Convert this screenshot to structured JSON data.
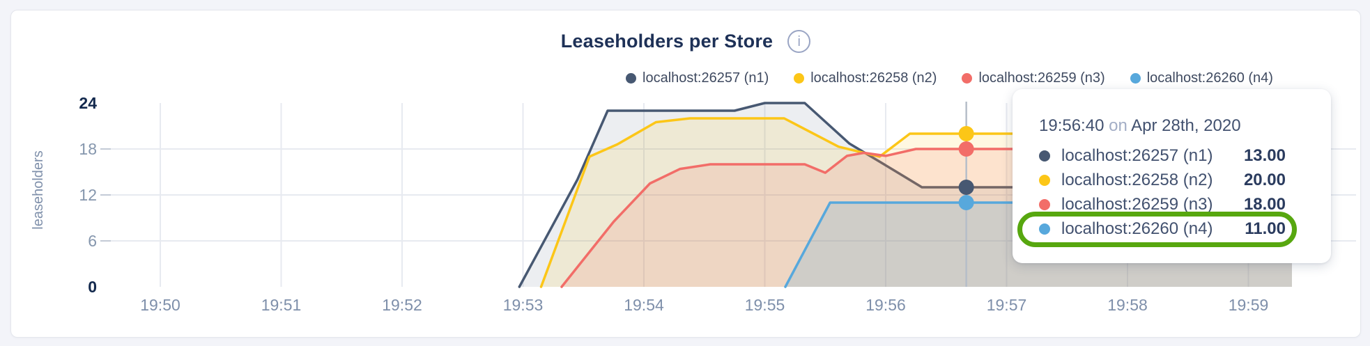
{
  "header": {
    "title": "Leaseholders per Store",
    "info_tooltip_glyph": "i"
  },
  "legend": {
    "items": [
      {
        "label": "localhost:26257 (n1)",
        "color": "#475872"
      },
      {
        "label": "localhost:26258 (n2)",
        "color": "#fcc617"
      },
      {
        "label": "localhost:26259 (n3)",
        "color": "#f26d68"
      },
      {
        "label": "localhost:26260 (n4)",
        "color": "#57a8dc"
      }
    ]
  },
  "chart_data": {
    "type": "area",
    "title": "Leaseholders per Store",
    "xlabel": "",
    "ylabel": "leaseholders",
    "ylim": [
      0,
      24
    ],
    "y_ticks": [
      0,
      6,
      12,
      18,
      24
    ],
    "y_ticks_bold": [
      0,
      24
    ],
    "y_gridlines": [
      6,
      12,
      18
    ],
    "x_ticks": [
      "19:50",
      "19:51",
      "19:52",
      "19:53",
      "19:54",
      "19:55",
      "19:56",
      "19:57",
      "19:58",
      "19:59"
    ],
    "x_axis_unit": "minutes after 19:50",
    "x_data_end": 9.36,
    "grid": true,
    "legend_position": "top",
    "hover": {
      "x_minutes": 6.6667,
      "time": "19:56:40",
      "line_color": "#b6bec9"
    },
    "series": [
      {
        "name": "localhost:26257 (n1)",
        "color": "#475872",
        "fill": "rgba(71,88,114,0.10)",
        "hover_value": 13,
        "points": [
          [
            2.97,
            0
          ],
          [
            3.45,
            14
          ],
          [
            3.7,
            23
          ],
          [
            4.75,
            23
          ],
          [
            5.0,
            24
          ],
          [
            5.33,
            24
          ],
          [
            5.7,
            18.7
          ],
          [
            6.06,
            15.3
          ],
          [
            6.3,
            13
          ],
          [
            9.36,
            13
          ]
        ]
      },
      {
        "name": "localhost:26258 (n2)",
        "color": "#fcc617",
        "fill": "rgba(252,198,23,0.13)",
        "hover_value": 20,
        "points": [
          [
            3.15,
            0
          ],
          [
            3.55,
            17
          ],
          [
            3.78,
            18.6
          ],
          [
            4.1,
            21.5
          ],
          [
            4.38,
            22
          ],
          [
            5.16,
            22
          ],
          [
            5.61,
            18.3
          ],
          [
            5.95,
            17
          ],
          [
            6.2,
            20
          ],
          [
            9.36,
            20
          ]
        ]
      },
      {
        "name": "localhost:26259 (n3)",
        "color": "#f26d68",
        "fill": "rgba(242,109,104,0.15)",
        "hover_value": 18,
        "points": [
          [
            3.32,
            0
          ],
          [
            3.75,
            8.5
          ],
          [
            4.05,
            13.5
          ],
          [
            4.3,
            15.4
          ],
          [
            4.55,
            16
          ],
          [
            5.33,
            16
          ],
          [
            5.5,
            14.9
          ],
          [
            5.68,
            17.1
          ],
          [
            5.82,
            17.5
          ],
          [
            6.0,
            17.1
          ],
          [
            6.25,
            18
          ],
          [
            9.36,
            18
          ]
        ]
      },
      {
        "name": "localhost:26260 (n4)",
        "color": "#57a8dc",
        "fill": "rgba(87,168,220,0.20)",
        "hover_value": 11,
        "points": [
          [
            5.17,
            0
          ],
          [
            5.54,
            11
          ],
          [
            9.36,
            11
          ]
        ]
      }
    ]
  },
  "tooltip": {
    "time": "19:56:40",
    "conjunction": "on",
    "date": "Apr 28th, 2020",
    "rows": [
      {
        "name": "localhost:26257 (n1)",
        "value": "13.00",
        "color": "#475872",
        "highlighted": false
      },
      {
        "name": "localhost:26258 (n2)",
        "value": "20.00",
        "color": "#fcc617",
        "highlighted": false
      },
      {
        "name": "localhost:26259 (n3)",
        "value": "18.00",
        "color": "#f26d68",
        "highlighted": false
      },
      {
        "name": "localhost:26260 (n4)",
        "value": "11.00",
        "color": "#57a8dc",
        "highlighted": true
      }
    ],
    "highlight_color": "#57a70f"
  },
  "colors": {
    "page_background": "#f3f4f9",
    "card_background": "#ffffff",
    "title_text": "#1e3157",
    "axis_label": "#7e8faa",
    "axis_tick_light": "#8596ad",
    "axis_tick_bold": "#13294d",
    "gridline": "#e7eaf0",
    "tick_dash": "#c3cad6"
  }
}
